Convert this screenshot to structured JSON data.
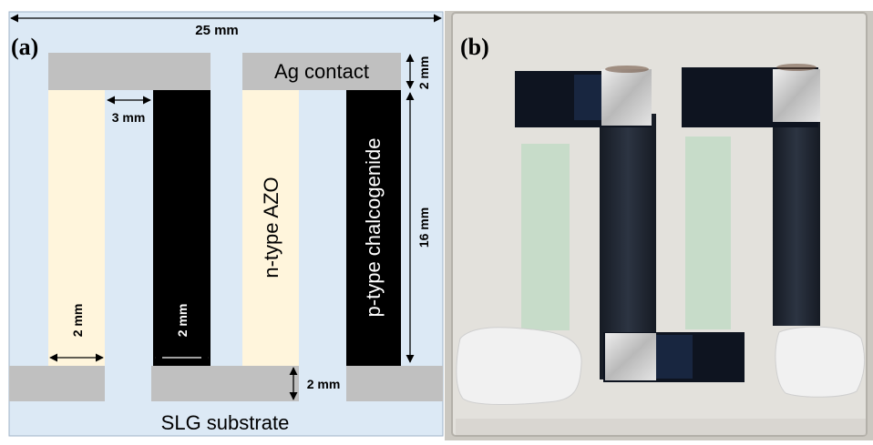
{
  "panel_a": {
    "label": "(a)",
    "width_dim": "25 mm",
    "ag_label": "Ag contact",
    "ag_dim": "2 mm",
    "gap_dim": "3 mm",
    "length_dim": "16 mm",
    "n_label": "n-type AZO",
    "p_label": "p-type chalcogenide",
    "n_width_dim": "2 mm",
    "p_width_dim": "2 mm",
    "bottom_dim": "2 mm",
    "substrate_label": "SLG substrate",
    "colors": {
      "substrate": "#dce9f5",
      "contact": "#c0c0c0",
      "n_type": "#fff5dc",
      "p_type": "#000000"
    }
  },
  "panel_b": {
    "label": "(b)",
    "colors": {
      "background": "#cbc8c1",
      "glass": "#e3e1dc",
      "n_film": "#c3dcc6",
      "p_film": "#1f2530",
      "silver": "#d8d8d8",
      "paste": "#f1f1f1"
    }
  }
}
